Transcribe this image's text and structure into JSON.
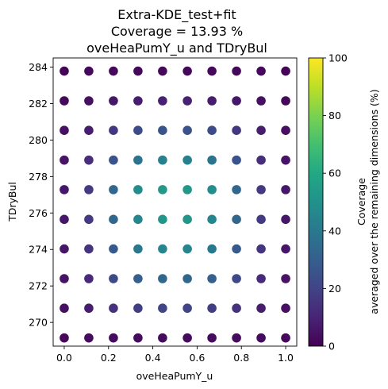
{
  "chart_data": {
    "type": "scatter",
    "title": [
      "Extra-KDE_test+fit",
      "Coverage = 13.93 %",
      "oveHeaPumY_u and TDryBul"
    ],
    "xlabel": "oveHeaPumY_u",
    "ylabel": "TDryBul",
    "xlim": [
      -0.05,
      1.05
    ],
    "ylim": [
      268.7,
      284.5
    ],
    "xticks": [
      0.0,
      0.2,
      0.4,
      0.6,
      0.8,
      1.0
    ],
    "xtick_labels": [
      "0.0",
      "0.2",
      "0.4",
      "0.6",
      "0.8",
      "1.0"
    ],
    "yticks": [
      270,
      272,
      274,
      276,
      278,
      280,
      282,
      284
    ],
    "ytick_labels": [
      "270",
      "272",
      "274",
      "276",
      "278",
      "280",
      "282",
      "284"
    ],
    "x": [
      0.0,
      0.111,
      0.222,
      0.333,
      0.444,
      0.556,
      0.667,
      0.778,
      0.889,
      1.0
    ],
    "y": [
      269.15,
      270.78,
      272.4,
      274.03,
      275.65,
      277.28,
      278.9,
      280.53,
      282.15,
      283.78
    ],
    "colormap": "viridis",
    "colorbar": {
      "label_line1": "Coverage",
      "label_line2": "averaged over the remaining dimensions (%)",
      "min": 0,
      "max": 100,
      "ticks": [
        0,
        20,
        40,
        60,
        80,
        100
      ],
      "tick_labels": [
        "0",
        "20",
        "40",
        "60",
        "80",
        "100"
      ]
    },
    "coverage_grid": [
      [
        2,
        3,
        3,
        3,
        3,
        3,
        3,
        3,
        3,
        2
      ],
      [
        4,
        8,
        14,
        18,
        20,
        20,
        18,
        14,
        8,
        4
      ],
      [
        5,
        12,
        22,
        30,
        33,
        33,
        30,
        22,
        12,
        5
      ],
      [
        6,
        15,
        28,
        40,
        45,
        45,
        40,
        28,
        15,
        6
      ],
      [
        6,
        17,
        33,
        46,
        52,
        52,
        46,
        33,
        17,
        6
      ],
      [
        6,
        17,
        33,
        48,
        53,
        53,
        48,
        33,
        17,
        6
      ],
      [
        5,
        13,
        26,
        38,
        43,
        43,
        38,
        26,
        13,
        5
      ],
      [
        4,
        8,
        16,
        23,
        26,
        26,
        23,
        16,
        8,
        4
      ],
      [
        2,
        4,
        6,
        8,
        9,
        9,
        8,
        6,
        4,
        2
      ],
      [
        1,
        2,
        2,
        2,
        2,
        2,
        2,
        2,
        2,
        1
      ]
    ]
  }
}
